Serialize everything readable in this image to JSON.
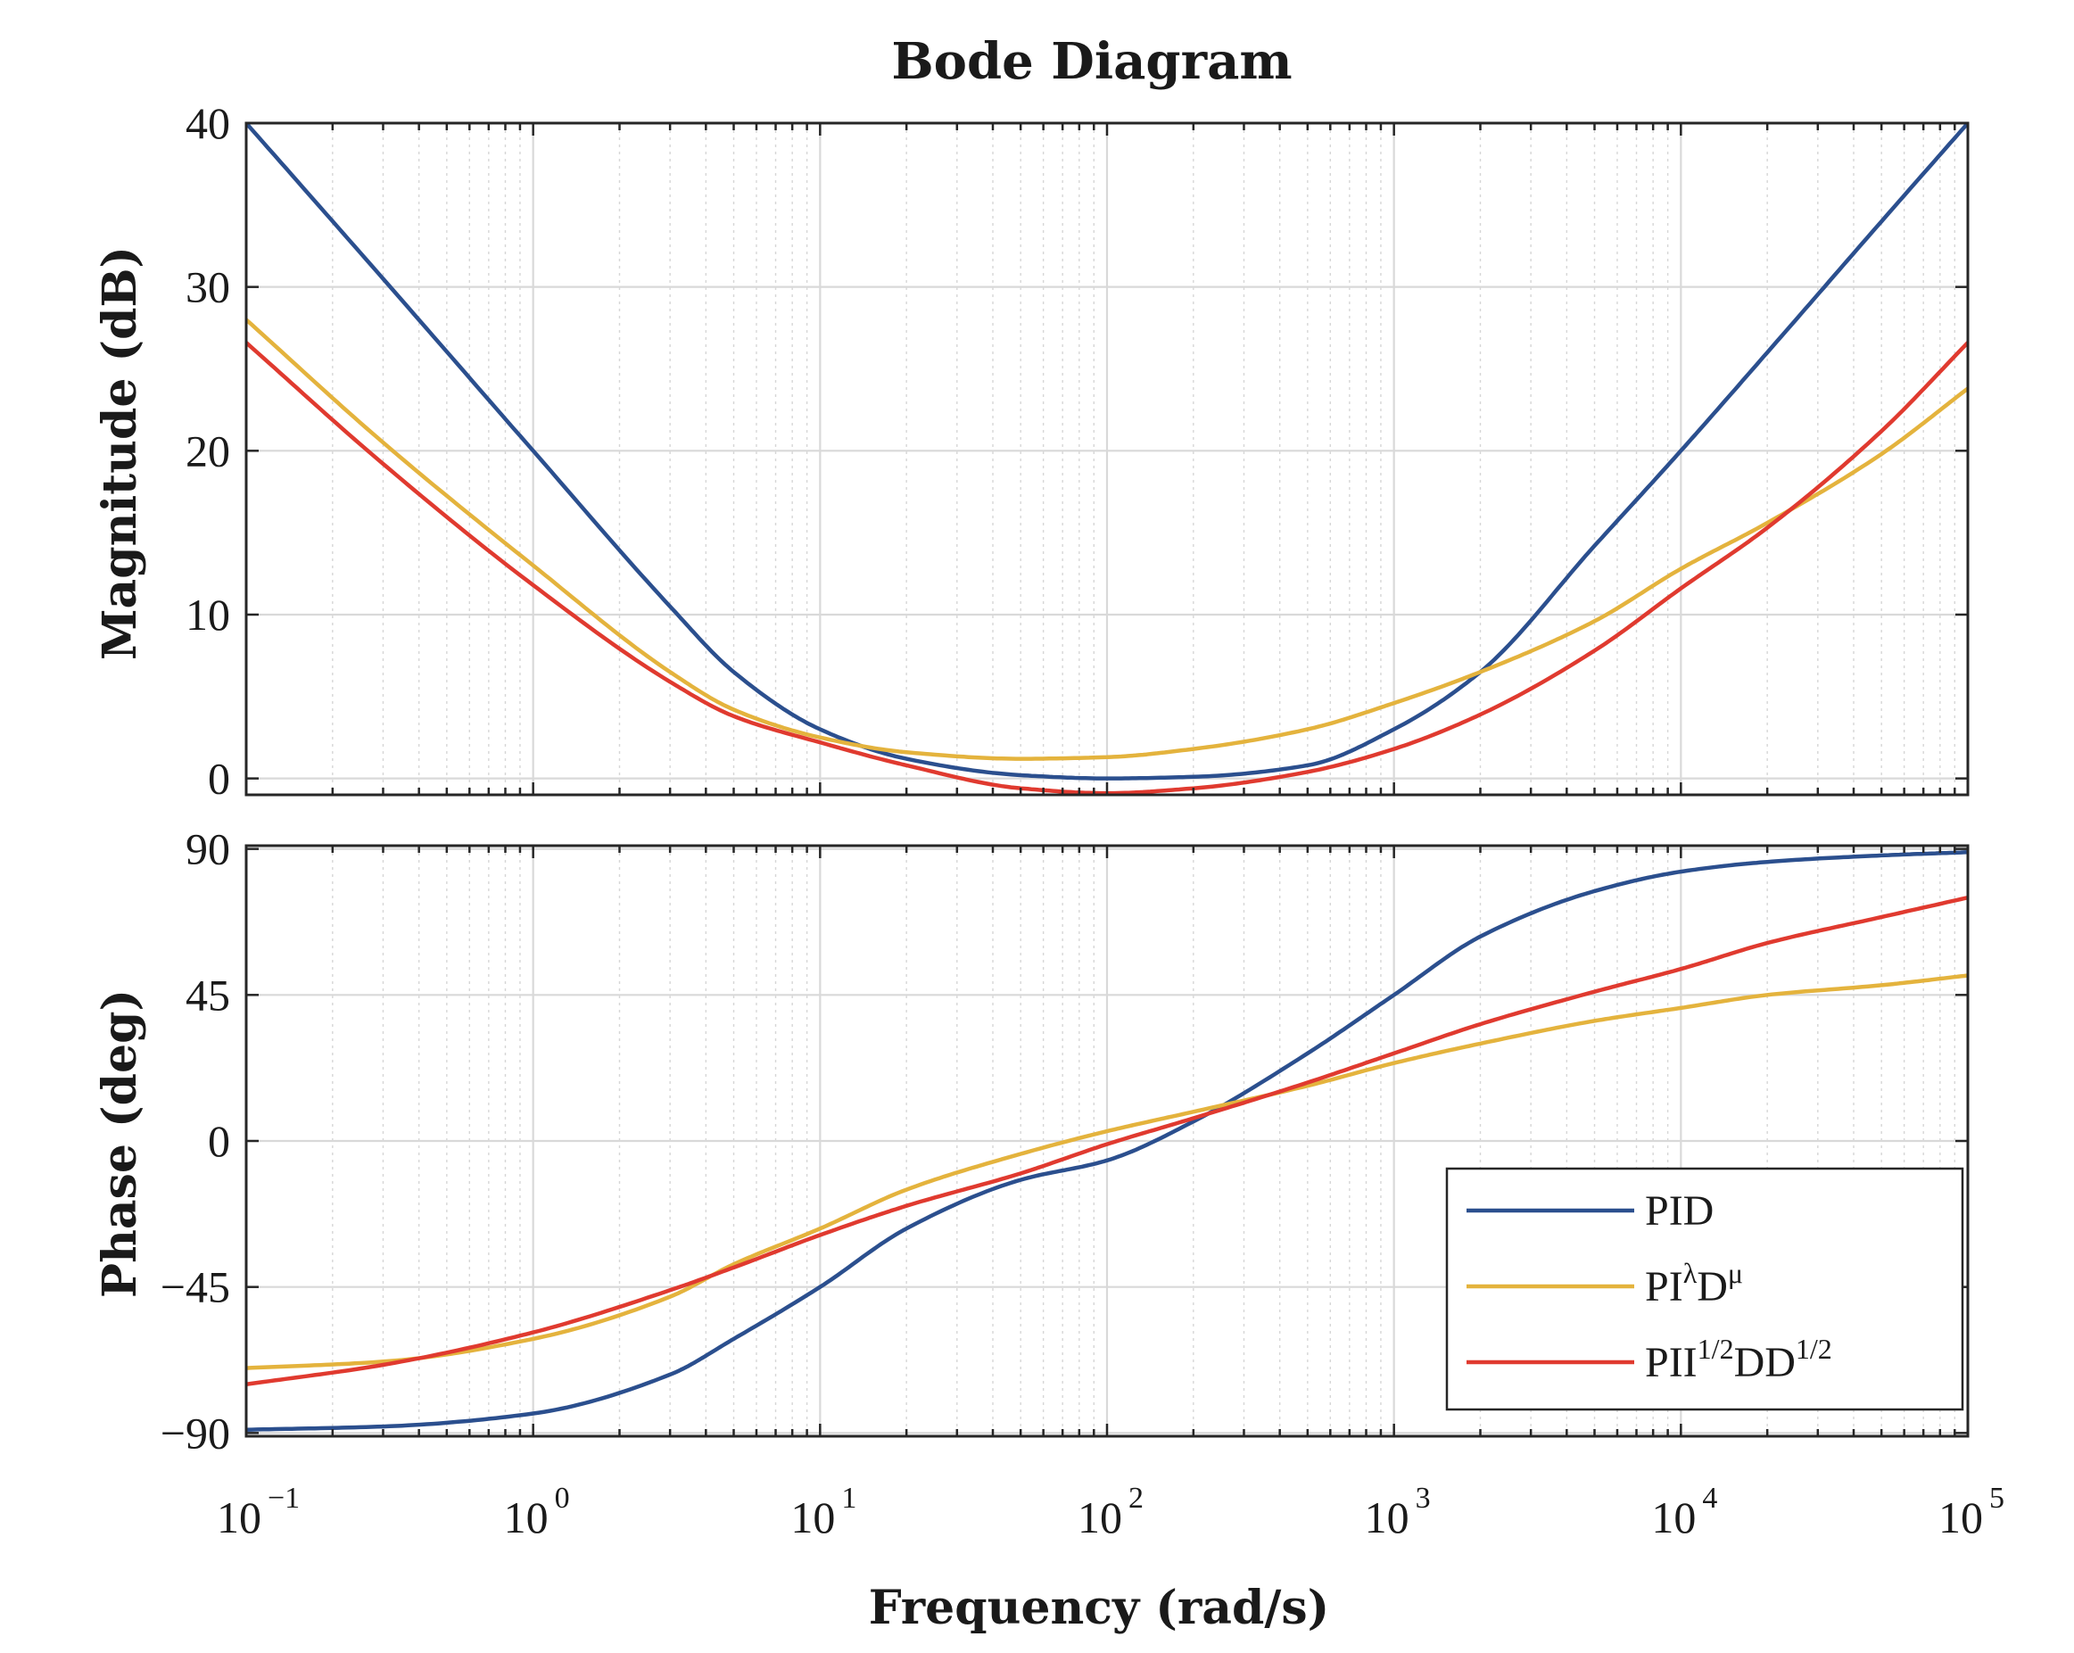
{
  "chart_data": {
    "type": "line",
    "title": "Bode Diagram",
    "xlabel": "Frequency  (rad/s)",
    "xscale": "log",
    "xlim": [
      0.1,
      100000
    ],
    "x_ticks": [
      {
        "base": "10",
        "exp": "−1"
      },
      {
        "base": "10",
        "exp": "0"
      },
      {
        "base": "10",
        "exp": "1"
      },
      {
        "base": "10",
        "exp": "2"
      },
      {
        "base": "10",
        "exp": "3"
      },
      {
        "base": "10",
        "exp": "4"
      },
      {
        "base": "10",
        "exp": "5"
      }
    ],
    "grid": true,
    "legend_position": "bottom-right (phase panel)",
    "x": [
      0.1,
      0.3,
      1,
      3,
      5,
      10,
      20,
      50,
      100,
      200,
      500,
      1000,
      2000,
      5000,
      10000,
      20000,
      50000,
      100000
    ],
    "subplots": [
      {
        "name": "magnitude",
        "ylabel": "Magnitude (dB)",
        "ylim": [
          -1,
          40
        ],
        "yticks": [
          0,
          10,
          20,
          30,
          40
        ],
        "ytick_labels": [
          "0",
          "10",
          "20",
          "30",
          "40"
        ],
        "series": [
          {
            "name": "PID",
            "color": "#2b4f8e",
            "values": [
              40,
              30.5,
              20,
              10.5,
              6.5,
              3.0,
              1.2,
              0.2,
              0.0,
              0.1,
              0.8,
              3.0,
              6.5,
              14.2,
              20,
              26,
              34,
              40
            ]
          },
          {
            "name": "PIλDμ",
            "color": "#e4b33d",
            "values": [
              28,
              20.5,
              13,
              6.5,
              4.2,
              2.5,
              1.6,
              1.2,
              1.3,
              1.8,
              3.0,
              4.6,
              6.5,
              9.6,
              12.8,
              15.6,
              19.8,
              23.8
            ]
          },
          {
            "name": "PII1/2DD1/2",
            "color": "#e03a2f",
            "values": [
              26.6,
              19.2,
              11.8,
              5.9,
              3.8,
              2.2,
              0.8,
              -0.6,
              -0.9,
              -0.6,
              0.4,
              1.8,
              3.9,
              7.8,
              11.6,
              15.3,
              21.2,
              26.6
            ]
          }
        ]
      },
      {
        "name": "phase",
        "ylabel": "Phase (deg)",
        "ylim": [
          -91,
          91
        ],
        "yticks": [
          -90,
          -45,
          0,
          45,
          90
        ],
        "ytick_labels": [
          "−90",
          "−45",
          "0",
          "45",
          "90"
        ],
        "series": [
          {
            "name": "PID",
            "color": "#2b4f8e",
            "values": [
              -89,
              -88,
              -84,
              -72,
              -61,
              -45,
              -27,
              -12,
              -6,
              6,
              27,
              45,
              63,
              77,
              83,
              86,
              88,
              89
            ]
          },
          {
            "name": "PIλDμ",
            "color": "#e4b33d",
            "values": [
              -70,
              -68,
              -61,
              -48,
              -38,
              -27,
              -15,
              -4,
              3,
              9,
              17,
              24,
              30,
              37,
              41,
              45,
              48,
              51
            ]
          },
          {
            "name": "PII1/2DD1/2",
            "color": "#e03a2f",
            "values": [
              -75,
              -69,
              -59,
              -46,
              -39,
              -29,
              -20,
              -10,
              -1,
              7,
              18,
              27,
              36,
              46,
              53,
              61,
              69,
              75
            ]
          }
        ]
      }
    ]
  },
  "legend": {
    "entries": [
      {
        "series": "PID",
        "color": "#2b4f8e",
        "parts": [
          {
            "t": "PID"
          }
        ]
      },
      {
        "series": "PIλDμ",
        "color": "#e4b33d",
        "parts": [
          {
            "t": "PI"
          },
          {
            "t": "λ",
            "sup": true
          },
          {
            "t": "D"
          },
          {
            "t": "μ",
            "sup": true
          }
        ]
      },
      {
        "series": "PII1/2DD1/2",
        "color": "#e03a2f",
        "parts": [
          {
            "t": "PII"
          },
          {
            "t": "1/2",
            "sup": true
          },
          {
            "t": "DD"
          },
          {
            "t": "1/2",
            "sup": true
          }
        ]
      }
    ]
  }
}
